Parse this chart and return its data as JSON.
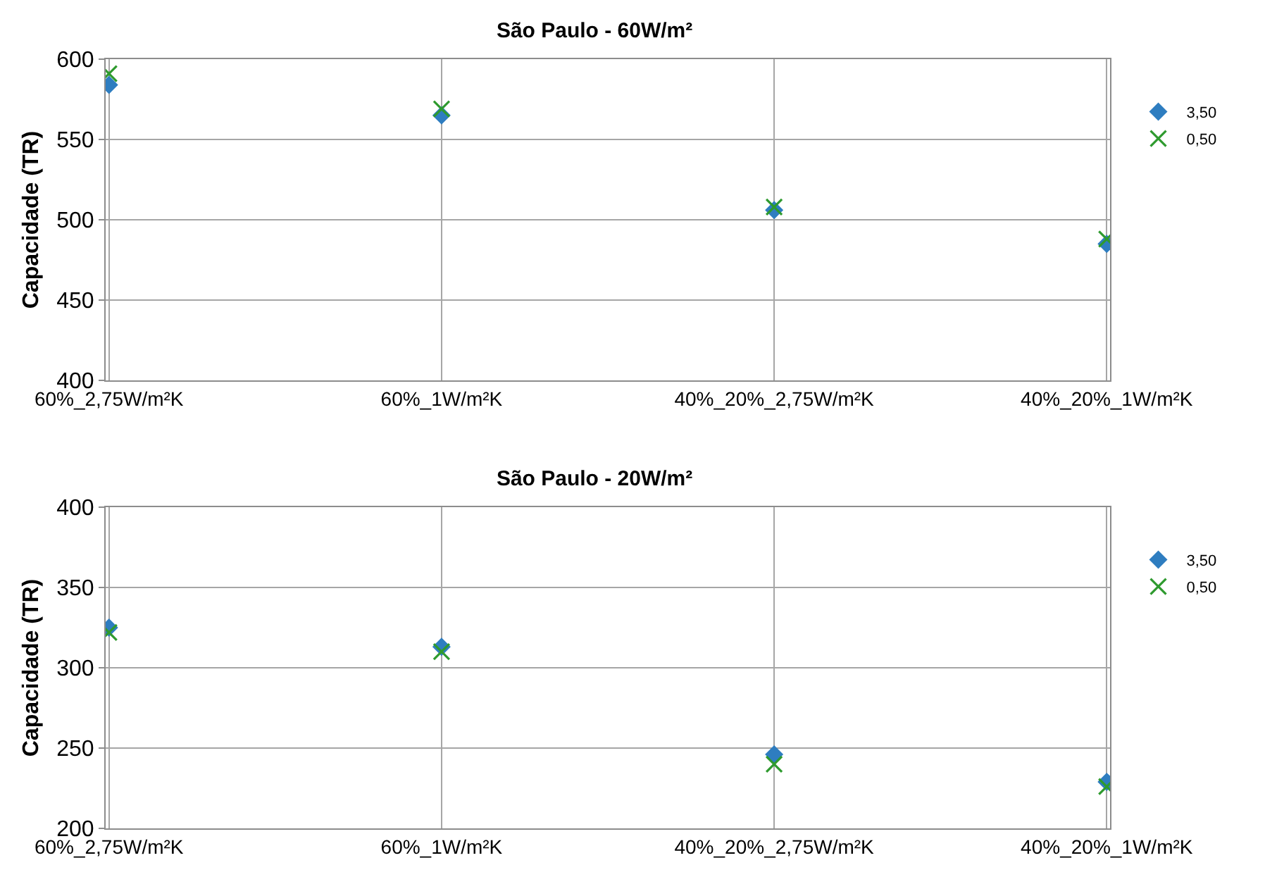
{
  "chart_data": [
    {
      "type": "scatter",
      "title": "São Paulo - 60W/m²",
      "ylabel": "Capacidade (TR)",
      "categories": [
        "60%_2,75W/m²K",
        "60%_1W/m²K",
        "40%_20%_2,75W/m²K",
        "40%_20%_1W/m²K"
      ],
      "ylim": [
        400,
        600
      ],
      "yticks": [
        400,
        450,
        500,
        550,
        600
      ],
      "grid": true,
      "legend": "right",
      "series": [
        {
          "name": "3,50",
          "color": "#2e7dc0",
          "marker": "diamond",
          "values": [
            584,
            565,
            506,
            485
          ]
        },
        {
          "name": "0,50",
          "color": "#2e9a2e",
          "marker": "cross",
          "values": [
            591,
            569,
            508,
            488
          ]
        }
      ]
    },
    {
      "type": "scatter",
      "title": "São Paulo - 20W/m²",
      "ylabel": "Capacidade (TR)",
      "categories": [
        "60%_2,75W/m²K",
        "60%_1W/m²K",
        "40%_20%_2,75W/m²K",
        "40%_20%_1W/m²K"
      ],
      "ylim": [
        200,
        400
      ],
      "yticks": [
        200,
        250,
        300,
        350,
        400
      ],
      "grid": true,
      "legend": "right",
      "series": [
        {
          "name": "3,50",
          "color": "#2e7dc0",
          "marker": "diamond",
          "values": [
            325,
            313,
            246,
            229
          ]
        },
        {
          "name": "0,50",
          "color": "#2e9a2e",
          "marker": "cross",
          "values": [
            322,
            310,
            240,
            226
          ]
        }
      ]
    }
  ]
}
